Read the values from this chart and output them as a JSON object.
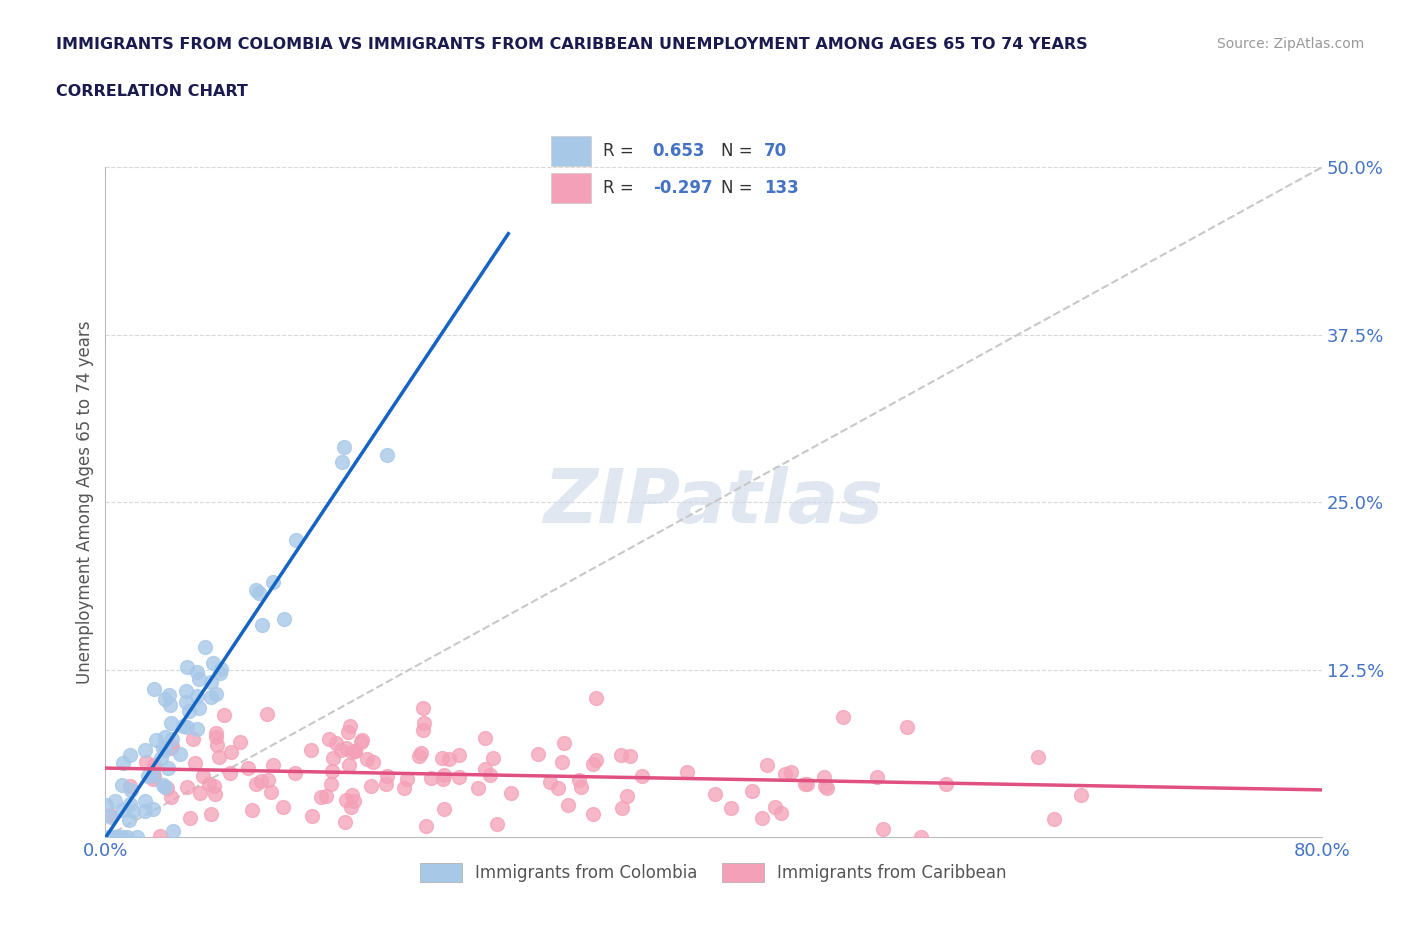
{
  "title_line1": "IMMIGRANTS FROM COLOMBIA VS IMMIGRANTS FROM CARIBBEAN UNEMPLOYMENT AMONG AGES 65 TO 74 YEARS",
  "title_line2": "CORRELATION CHART",
  "source_text": "Source: ZipAtlas.com",
  "ylabel": "Unemployment Among Ages 65 to 74 years",
  "xlim": [
    0.0,
    0.8
  ],
  "ylim": [
    0.0,
    0.5
  ],
  "xticks": [
    0.0,
    0.1,
    0.2,
    0.3,
    0.4,
    0.5,
    0.6,
    0.7,
    0.8
  ],
  "yticks": [
    0.0,
    0.125,
    0.25,
    0.375,
    0.5
  ],
  "colombia_R": 0.653,
  "colombia_N": 70,
  "caribbean_R": -0.297,
  "caribbean_N": 133,
  "colombia_color": "#a8c8e8",
  "colombia_line_color": "#1565c0",
  "caribbean_color": "#f4a0b8",
  "caribbean_line_color": "#e05080",
  "ref_line_color": "#c8c8c8",
  "background_color": "#ffffff",
  "grid_color": "#d8d8d8",
  "title_color": "#1a1a4e",
  "axis_label_color": "#555555",
  "tick_color": "#4472c4",
  "legend_text_color": "#4472c4",
  "watermark_color": "#ccd8e8",
  "colombia_seed": 12,
  "caribbean_seed": 55
}
